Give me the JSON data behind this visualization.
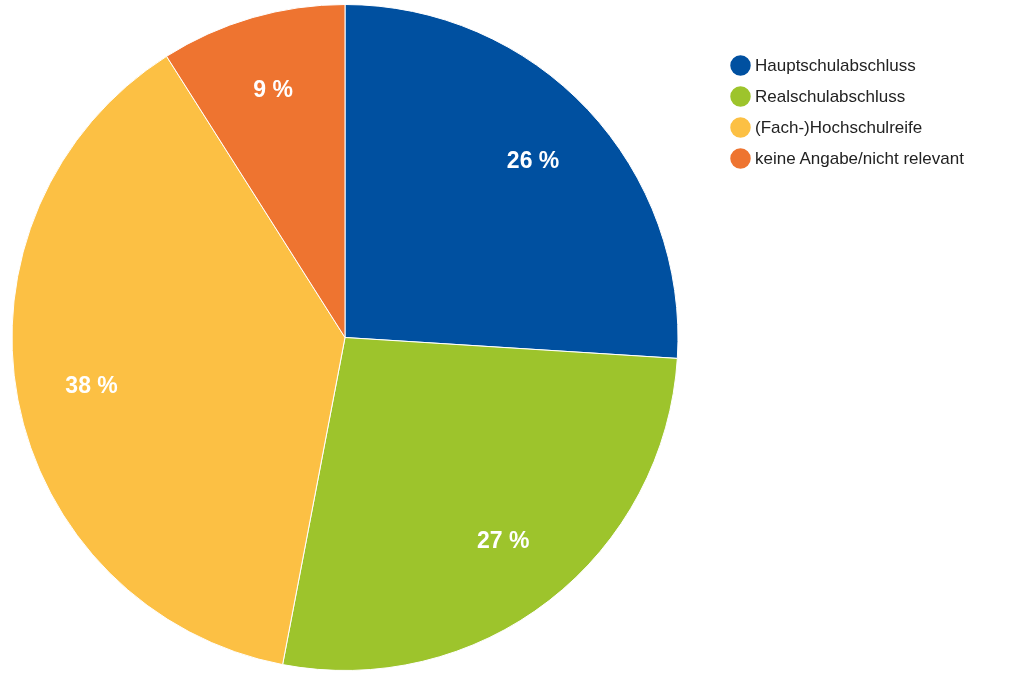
{
  "chart_data": {
    "type": "pie",
    "categories": [
      "Hauptschulabschluss",
      "Realschulabschluss",
      "(Fach-)Hochschulreife",
      "keine Angabe/nicht relevant"
    ],
    "values": [
      26,
      27,
      38,
      9
    ],
    "colors": [
      "#0050a0",
      "#9dc42c",
      "#fcc044",
      "#ee7430"
    ],
    "value_labels": [
      "26 %",
      "27 %",
      "38 %",
      "9 %"
    ],
    "legend": "top right"
  }
}
